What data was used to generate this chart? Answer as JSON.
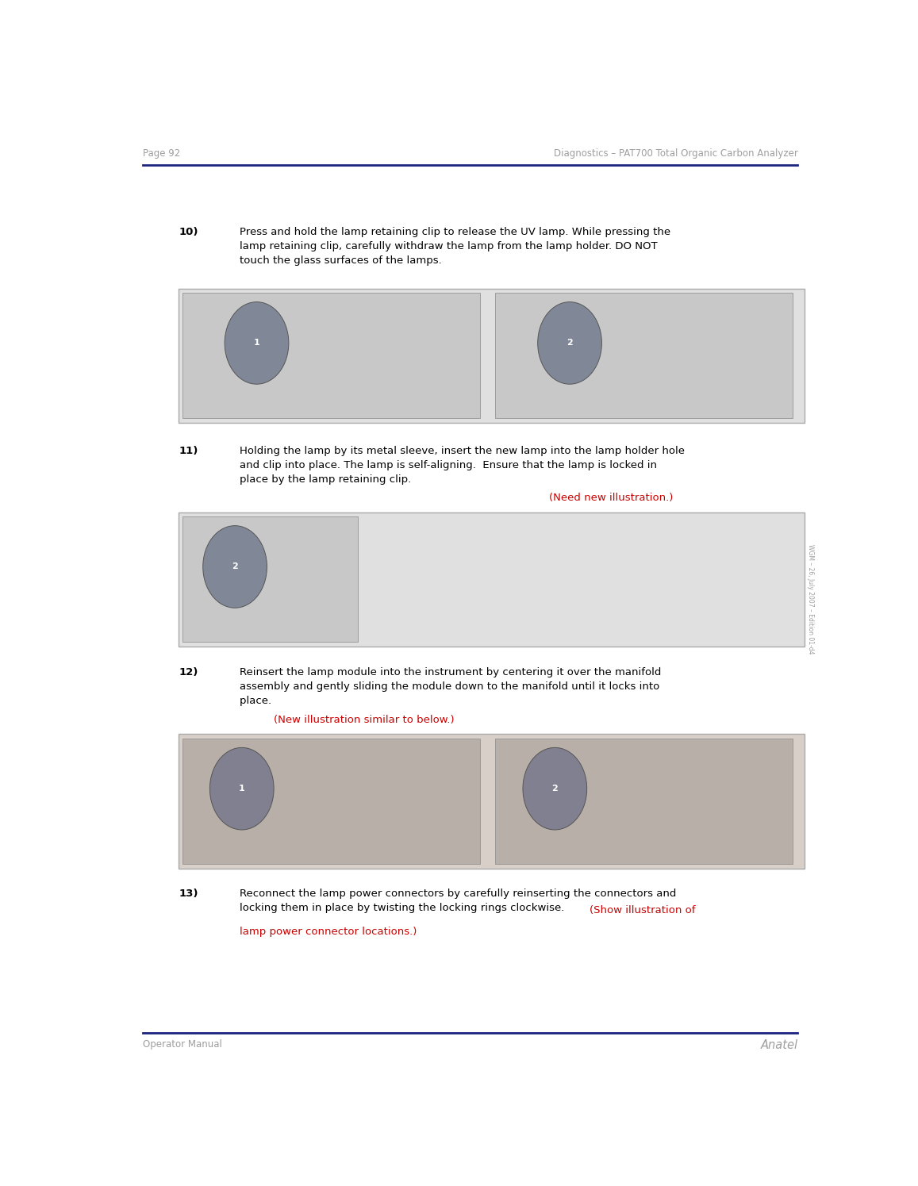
{
  "page_number": "Page 92",
  "header_right": "Diagnostics – PAT700 Total Organic Carbon Analyzer",
  "footer_left": "Operator Manual",
  "footer_right": "Anatel",
  "header_line_color": "#1a237e",
  "footer_line_color": "#1a237e",
  "header_text_color": "#9e9e9e",
  "footer_text_color": "#9e9e9e",
  "body_text_color": "#000000",
  "background_color": "#ffffff",
  "watermark_text": "WGM – 26, July 2007 – Edition 01-d4",
  "link_color": "#cc0000",
  "indent_number": 0.09,
  "indent_text": 0.175,
  "body_fontsize": 9.5,
  "header_fontsize": 8.5,
  "footer_fontsize": 8.5
}
